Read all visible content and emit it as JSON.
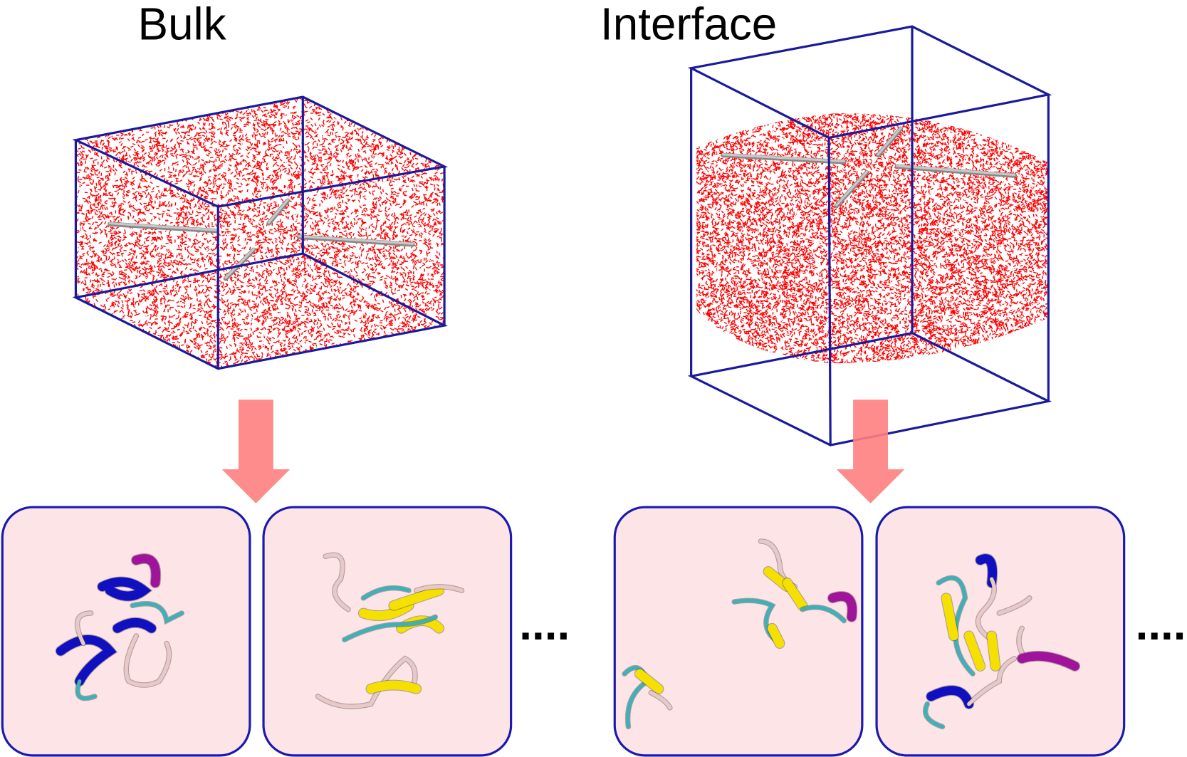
{
  "panels": {
    "bulk": {
      "title": "Bulk",
      "ellipsis": "...."
    },
    "interface": {
      "title": "Interface",
      "ellipsis": "...."
    }
  },
  "colors": {
    "box_edge": "#1a1a9c",
    "water": "#ff0000",
    "rod": "#c8c8c8",
    "arrow": "#ff7f7f",
    "snapshot_bg": "#fde4e6",
    "snapshot_border": "#1a1ab0",
    "helix_alpha": "#1010c0",
    "helix_310": "#a0149c",
    "strand": "#f5e000",
    "turn": "#40b0b8",
    "coil": "#e8c8c8"
  },
  "icons": {
    "arrow": "down-arrow"
  }
}
